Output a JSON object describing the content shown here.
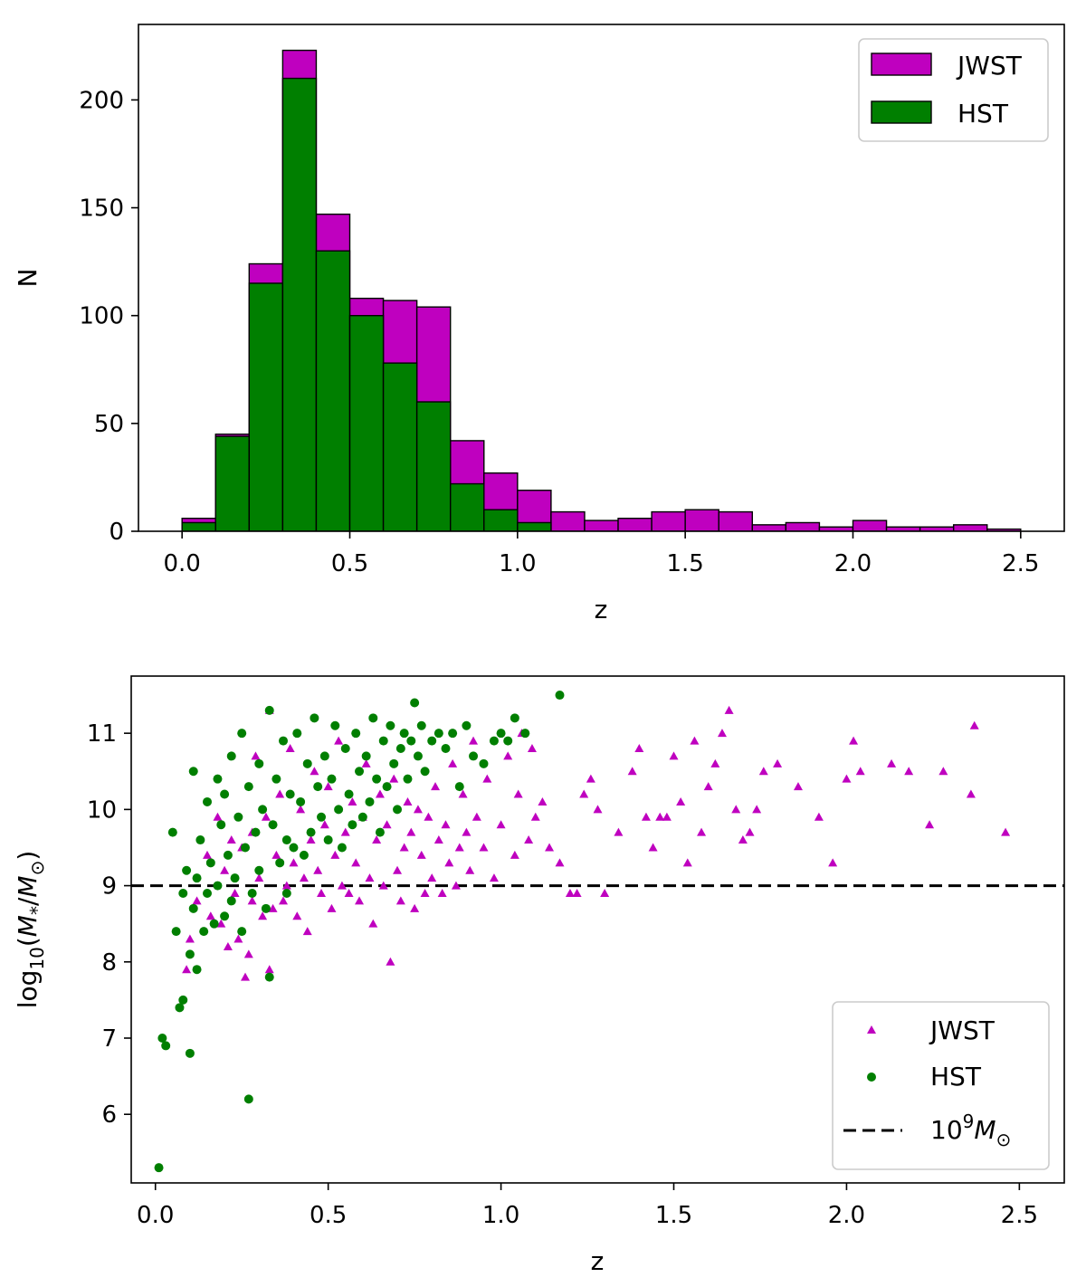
{
  "chart_data": [
    {
      "type": "bar",
      "subtype": "overlaid histogram",
      "bin_edges": [
        0.0,
        0.1,
        0.2,
        0.3,
        0.4,
        0.5,
        0.6,
        0.7,
        0.8,
        0.9,
        1.0,
        1.1,
        1.2,
        1.3,
        1.4,
        1.5,
        1.6,
        1.7,
        1.8,
        1.9,
        2.0,
        2.1,
        2.2,
        2.3,
        2.4,
        2.5
      ],
      "series": [
        {
          "name": "JWST",
          "color": "#bf00bf",
          "values": [
            6,
            45,
            124,
            223,
            147,
            108,
            107,
            104,
            42,
            27,
            19,
            9,
            5,
            6,
            9,
            10,
            9,
            3,
            4,
            2,
            5,
            2,
            2,
            3,
            1
          ]
        },
        {
          "name": "HST",
          "color": "#007f00",
          "values": [
            4,
            44,
            115,
            210,
            130,
            100,
            78,
            60,
            22,
            10,
            4,
            0,
            0,
            0,
            0,
            0,
            0,
            0,
            0,
            0,
            0,
            0,
            0,
            0,
            0
          ]
        }
      ],
      "xlabel": "z",
      "ylabel": "N",
      "xlim": [
        -0.13,
        2.63
      ],
      "ylim": [
        0,
        235
      ],
      "xticks": [
        "0.0",
        "0.5",
        "1.0",
        "1.5",
        "2.0",
        "2.5"
      ],
      "yticks": [
        "0",
        "50",
        "100",
        "150",
        "200"
      ],
      "legend": {
        "position": "top-right",
        "entries": [
          "JWST",
          "HST"
        ]
      }
    },
    {
      "type": "scatter",
      "xlabel": "z",
      "ylabel": "log$_{10}$($M_*$/$M_\\odot$)",
      "xlim": [
        -0.07,
        2.63
      ],
      "ylim": [
        5.1,
        11.75
      ],
      "xticks": [
        "0.0",
        "0.5",
        "1.0",
        "1.5",
        "2.0",
        "2.5"
      ],
      "yticks": [
        "6",
        "7",
        "8",
        "9",
        "10",
        "11"
      ],
      "hline": {
        "y": 9.0,
        "style": "dashed",
        "color": "#000000",
        "label": "10^9 M_⊙"
      },
      "legend": {
        "position": "bottom-right",
        "entries": [
          "JWST",
          "HST",
          "10^9 M_⊙"
        ]
      },
      "series": [
        {
          "name": "JWST",
          "marker": "triangle",
          "color": "#bf00bf",
          "points": [
            [
              0.09,
              7.9
            ],
            [
              0.1,
              8.3
            ],
            [
              0.12,
              8.8
            ],
            [
              0.15,
              9.4
            ],
            [
              0.16,
              8.6
            ],
            [
              0.18,
              9.9
            ],
            [
              0.19,
              8.5
            ],
            [
              0.2,
              9.2
            ],
            [
              0.21,
              8.2
            ],
            [
              0.22,
              9.6
            ],
            [
              0.23,
              8.9
            ],
            [
              0.24,
              8.3
            ],
            [
              0.25,
              9.5
            ],
            [
              0.26,
              7.8
            ],
            [
              0.27,
              8.1
            ],
            [
              0.28,
              9.7
            ],
            [
              0.28,
              8.8
            ],
            [
              0.29,
              10.7
            ],
            [
              0.3,
              9.1
            ],
            [
              0.31,
              8.6
            ],
            [
              0.32,
              9.9
            ],
            [
              0.33,
              7.9
            ],
            [
              0.33,
              11.3
            ],
            [
              0.34,
              8.7
            ],
            [
              0.35,
              9.4
            ],
            [
              0.36,
              10.2
            ],
            [
              0.37,
              8.8
            ],
            [
              0.38,
              9.0
            ],
            [
              0.39,
              10.8
            ],
            [
              0.4,
              9.3
            ],
            [
              0.41,
              8.6
            ],
            [
              0.42,
              10.0
            ],
            [
              0.43,
              9.1
            ],
            [
              0.44,
              8.4
            ],
            [
              0.45,
              9.6
            ],
            [
              0.46,
              10.5
            ],
            [
              0.47,
              9.2
            ],
            [
              0.48,
              8.9
            ],
            [
              0.49,
              9.8
            ],
            [
              0.5,
              10.3
            ],
            [
              0.51,
              8.7
            ],
            [
              0.52,
              9.4
            ],
            [
              0.53,
              10.9
            ],
            [
              0.54,
              9.0
            ],
            [
              0.55,
              9.7
            ],
            [
              0.56,
              8.9
            ],
            [
              0.57,
              10.1
            ],
            [
              0.58,
              9.3
            ],
            [
              0.59,
              8.8
            ],
            [
              0.6,
              9.9
            ],
            [
              0.61,
              10.6
            ],
            [
              0.62,
              9.1
            ],
            [
              0.63,
              8.5
            ],
            [
              0.64,
              9.6
            ],
            [
              0.65,
              10.2
            ],
            [
              0.66,
              9.0
            ],
            [
              0.67,
              9.8
            ],
            [
              0.68,
              8.0
            ],
            [
              0.69,
              10.4
            ],
            [
              0.7,
              9.2
            ],
            [
              0.71,
              8.8
            ],
            [
              0.72,
              9.5
            ],
            [
              0.73,
              10.1
            ],
            [
              0.74,
              9.7
            ],
            [
              0.75,
              8.7
            ],
            [
              0.76,
              10.0
            ],
            [
              0.77,
              9.4
            ],
            [
              0.78,
              8.9
            ],
            [
              0.79,
              9.9
            ],
            [
              0.8,
              9.1
            ],
            [
              0.81,
              10.3
            ],
            [
              0.82,
              9.6
            ],
            [
              0.83,
              8.9
            ],
            [
              0.84,
              9.8
            ],
            [
              0.85,
              9.3
            ],
            [
              0.86,
              10.6
            ],
            [
              0.87,
              9.0
            ],
            [
              0.88,
              9.5
            ],
            [
              0.89,
              10.2
            ],
            [
              0.9,
              9.7
            ],
            [
              0.91,
              9.2
            ],
            [
              0.92,
              10.9
            ],
            [
              0.93,
              9.9
            ],
            [
              0.95,
              9.5
            ],
            [
              0.96,
              10.4
            ],
            [
              0.98,
              9.1
            ],
            [
              1.0,
              9.8
            ],
            [
              1.02,
              10.7
            ],
            [
              1.04,
              9.4
            ],
            [
              1.05,
              10.2
            ],
            [
              1.06,
              11.0
            ],
            [
              1.08,
              9.6
            ],
            [
              1.09,
              10.8
            ],
            [
              1.1,
              9.9
            ],
            [
              1.12,
              10.1
            ],
            [
              1.14,
              9.5
            ],
            [
              1.17,
              9.3
            ],
            [
              1.2,
              8.9
            ],
            [
              1.22,
              8.9
            ],
            [
              1.24,
              10.2
            ],
            [
              1.26,
              10.4
            ],
            [
              1.28,
              10.0
            ],
            [
              1.3,
              8.9
            ],
            [
              1.34,
              9.7
            ],
            [
              1.38,
              10.5
            ],
            [
              1.4,
              10.8
            ],
            [
              1.42,
              9.9
            ],
            [
              1.44,
              9.5
            ],
            [
              1.46,
              9.9
            ],
            [
              1.48,
              9.9
            ],
            [
              1.5,
              10.7
            ],
            [
              1.52,
              10.1
            ],
            [
              1.54,
              9.3
            ],
            [
              1.56,
              10.9
            ],
            [
              1.58,
              9.7
            ],
            [
              1.6,
              10.3
            ],
            [
              1.62,
              10.6
            ],
            [
              1.64,
              11.0
            ],
            [
              1.66,
              11.3
            ],
            [
              1.68,
              10.0
            ],
            [
              1.7,
              9.6
            ],
            [
              1.72,
              9.7
            ],
            [
              1.74,
              10.0
            ],
            [
              1.76,
              10.5
            ],
            [
              1.8,
              10.6
            ],
            [
              1.86,
              10.3
            ],
            [
              1.92,
              9.9
            ],
            [
              1.96,
              9.3
            ],
            [
              2.0,
              10.4
            ],
            [
              2.02,
              10.9
            ],
            [
              2.04,
              10.5
            ],
            [
              2.13,
              10.6
            ],
            [
              2.18,
              10.5
            ],
            [
              2.24,
              9.8
            ],
            [
              2.28,
              10.5
            ],
            [
              2.36,
              10.2
            ],
            [
              2.37,
              11.1
            ],
            [
              2.46,
              9.7
            ]
          ]
        },
        {
          "name": "HST",
          "marker": "circle",
          "color": "#007f00",
          "points": [
            [
              0.01,
              5.3
            ],
            [
              0.02,
              7.0
            ],
            [
              0.03,
              6.9
            ],
            [
              0.05,
              9.7
            ],
            [
              0.06,
              8.4
            ],
            [
              0.07,
              7.4
            ],
            [
              0.08,
              7.5
            ],
            [
              0.08,
              8.9
            ],
            [
              0.09,
              9.2
            ],
            [
              0.1,
              6.8
            ],
            [
              0.1,
              8.1
            ],
            [
              0.11,
              8.7
            ],
            [
              0.11,
              10.5
            ],
            [
              0.12,
              9.1
            ],
            [
              0.12,
              7.9
            ],
            [
              0.13,
              9.6
            ],
            [
              0.14,
              8.4
            ],
            [
              0.15,
              10.1
            ],
            [
              0.15,
              8.9
            ],
            [
              0.16,
              9.3
            ],
            [
              0.17,
              8.5
            ],
            [
              0.18,
              10.4
            ],
            [
              0.18,
              9.0
            ],
            [
              0.19,
              9.8
            ],
            [
              0.2,
              8.6
            ],
            [
              0.2,
              10.2
            ],
            [
              0.21,
              9.4
            ],
            [
              0.22,
              8.8
            ],
            [
              0.22,
              10.7
            ],
            [
              0.23,
              9.1
            ],
            [
              0.24,
              9.9
            ],
            [
              0.25,
              8.4
            ],
            [
              0.25,
              11.0
            ],
            [
              0.26,
              9.5
            ],
            [
              0.27,
              6.2
            ],
            [
              0.27,
              10.3
            ],
            [
              0.28,
              8.9
            ],
            [
              0.29,
              9.7
            ],
            [
              0.3,
              10.6
            ],
            [
              0.3,
              9.2
            ],
            [
              0.31,
              10.0
            ],
            [
              0.32,
              8.7
            ],
            [
              0.33,
              11.3
            ],
            [
              0.33,
              7.8
            ],
            [
              0.34,
              9.8
            ],
            [
              0.35,
              10.4
            ],
            [
              0.36,
              9.3
            ],
            [
              0.37,
              10.9
            ],
            [
              0.38,
              9.6
            ],
            [
              0.38,
              8.9
            ],
            [
              0.39,
              10.2
            ],
            [
              0.4,
              9.5
            ],
            [
              0.41,
              11.0
            ],
            [
              0.42,
              10.1
            ],
            [
              0.43,
              9.4
            ],
            [
              0.44,
              10.6
            ],
            [
              0.45,
              9.7
            ],
            [
              0.46,
              11.2
            ],
            [
              0.47,
              10.3
            ],
            [
              0.48,
              9.9
            ],
            [
              0.49,
              10.7
            ],
            [
              0.5,
              9.6
            ],
            [
              0.51,
              10.4
            ],
            [
              0.52,
              11.1
            ],
            [
              0.53,
              10.0
            ],
            [
              0.54,
              9.5
            ],
            [
              0.55,
              10.8
            ],
            [
              0.56,
              10.2
            ],
            [
              0.57,
              9.8
            ],
            [
              0.58,
              11.0
            ],
            [
              0.59,
              10.5
            ],
            [
              0.6,
              9.9
            ],
            [
              0.61,
              10.7
            ],
            [
              0.62,
              10.1
            ],
            [
              0.63,
              11.2
            ],
            [
              0.64,
              10.4
            ],
            [
              0.65,
              9.7
            ],
            [
              0.66,
              10.9
            ],
            [
              0.67,
              10.3
            ],
            [
              0.68,
              11.1
            ],
            [
              0.69,
              10.6
            ],
            [
              0.7,
              10.0
            ],
            [
              0.71,
              10.8
            ],
            [
              0.72,
              11.0
            ],
            [
              0.73,
              10.4
            ],
            [
              0.74,
              10.9
            ],
            [
              0.75,
              11.4
            ],
            [
              0.76,
              10.7
            ],
            [
              0.77,
              11.1
            ],
            [
              0.78,
              10.5
            ],
            [
              0.8,
              10.9
            ],
            [
              0.82,
              11.0
            ],
            [
              0.84,
              10.8
            ],
            [
              0.86,
              11.0
            ],
            [
              0.88,
              10.3
            ],
            [
              0.9,
              11.1
            ],
            [
              0.92,
              10.7
            ],
            [
              0.95,
              10.6
            ],
            [
              0.98,
              10.9
            ],
            [
              1.0,
              11.0
            ],
            [
              1.02,
              10.9
            ],
            [
              1.04,
              11.2
            ],
            [
              1.07,
              11.0
            ],
            [
              1.17,
              11.5
            ]
          ]
        }
      ]
    }
  ]
}
